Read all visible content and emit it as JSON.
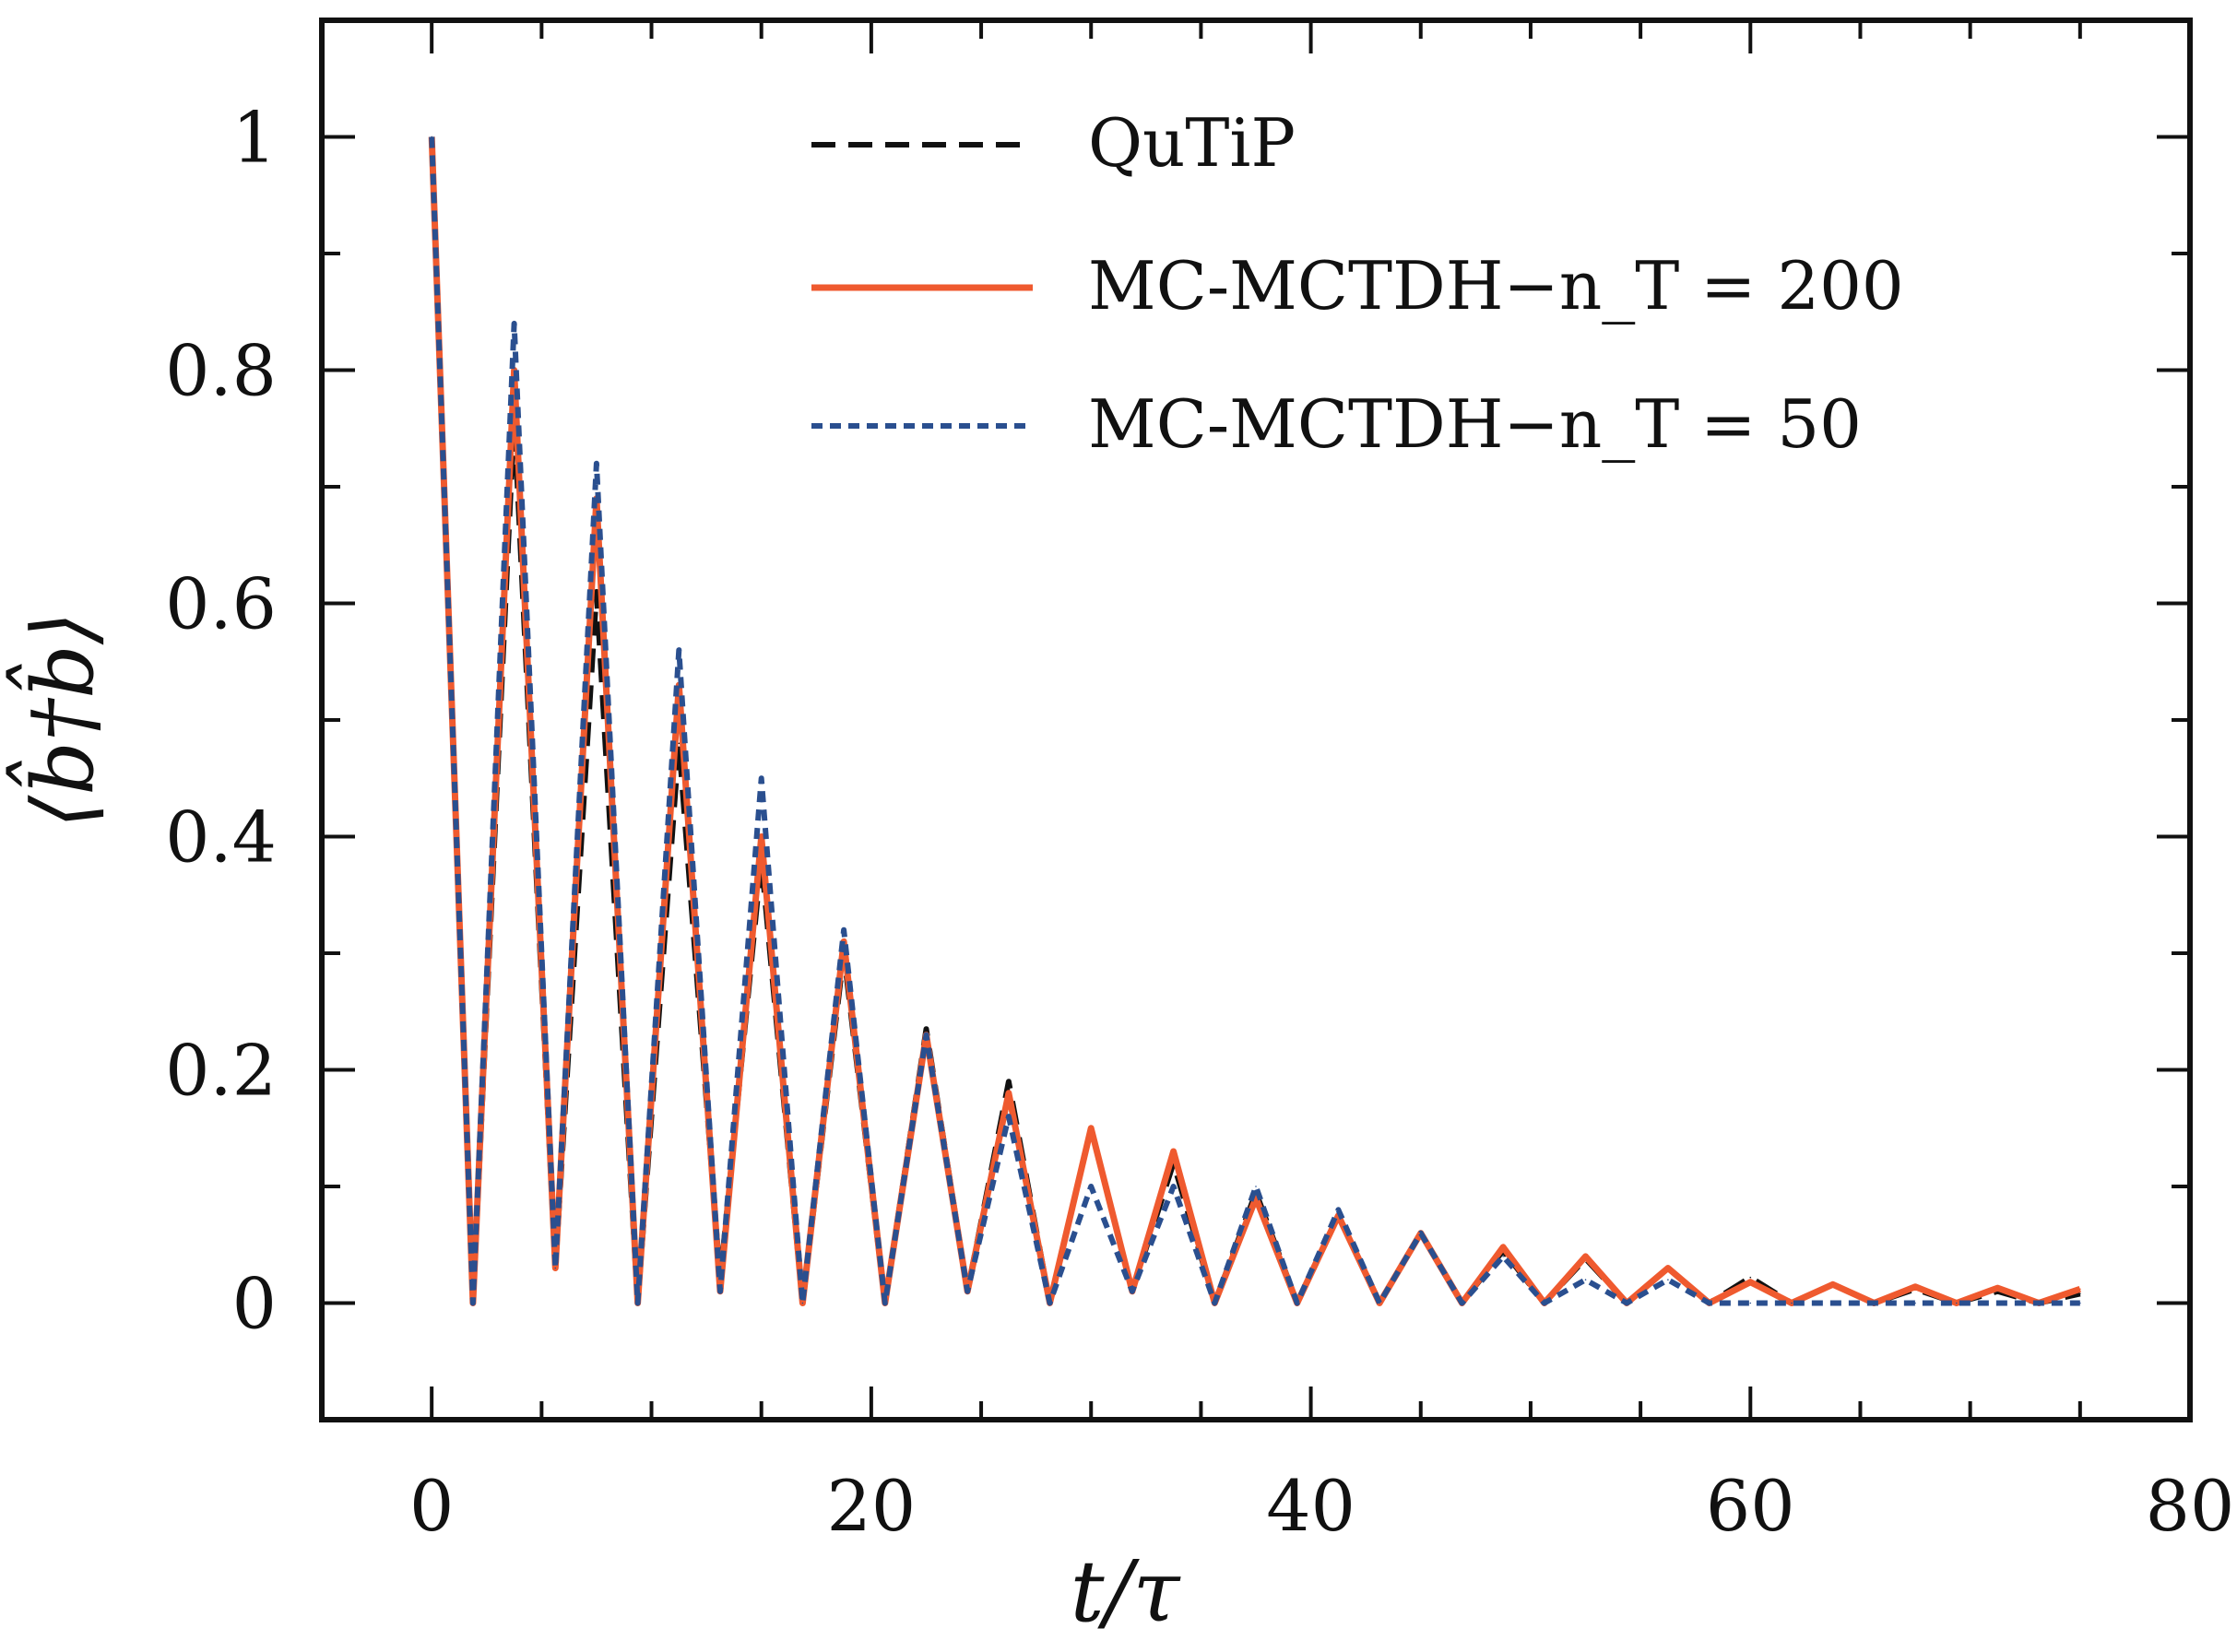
{
  "chart_data": {
    "type": "line",
    "title": "",
    "xlabel": "t/τ",
    "ylabel": "⟨b̂†b̂⟩",
    "xlim": [
      -5,
      80
    ],
    "ylim": [
      -0.1,
      1.1
    ],
    "xticks": [
      0,
      20,
      40,
      60,
      80
    ],
    "xtick_labels": [
      "0",
      "20",
      "40",
      "60",
      "80"
    ],
    "yticks": [
      0,
      0.2,
      0.4,
      0.6,
      0.8,
      1
    ],
    "ytick_labels": [
      "0",
      "0.2",
      "0.4",
      "0.6",
      "0.8",
      "1"
    ],
    "x_minor_step": 5,
    "y_minor_step": 0.1,
    "grid": false,
    "legend_position": "top-right",
    "x": [
      0,
      1.875,
      3.75,
      5.625,
      7.5,
      9.375,
      11.25,
      13.125,
      15,
      16.875,
      18.75,
      20.625,
      22.5,
      24.375,
      26.25,
      28.125,
      30,
      31.875,
      33.75,
      35.625,
      37.5,
      39.375,
      41.25,
      43.125,
      45,
      46.875,
      48.75,
      50.625,
      52.5,
      54.375,
      56.25,
      58.125,
      60,
      61.875,
      63.75,
      65.625,
      67.5,
      69.375,
      71.25,
      73.125,
      75
    ],
    "series": [
      {
        "name": "QuTiP",
        "color": "#111111",
        "style": "dashed",
        "values": [
          1.0,
          0.0,
          0.76,
          0.03,
          0.61,
          0.0,
          0.48,
          0.02,
          0.38,
          0.0,
          0.3,
          0.0,
          0.235,
          0.01,
          0.19,
          0.0,
          0.15,
          0.01,
          0.12,
          0.0,
          0.095,
          0.0,
          0.075,
          0.0,
          0.06,
          0.0,
          0.045,
          0.0,
          0.038,
          0.0,
          0.03,
          0.0,
          0.022,
          0.0,
          0.016,
          0.0,
          0.012,
          0.0,
          0.01,
          0.0,
          0.008
        ]
      },
      {
        "name": "MC-MCTDH−n_T = 200",
        "color": "#ef5a2f",
        "style": "solid",
        "values": [
          1.0,
          0.0,
          0.8,
          0.03,
          0.69,
          0.0,
          0.53,
          0.01,
          0.4,
          0.0,
          0.31,
          0.0,
          0.23,
          0.01,
          0.18,
          0.0,
          0.15,
          0.01,
          0.13,
          0.0,
          0.09,
          0.0,
          0.075,
          0.0,
          0.06,
          0.0,
          0.048,
          0.0,
          0.04,
          0.0,
          0.03,
          0.0,
          0.018,
          0.0,
          0.016,
          0.0,
          0.014,
          0.0,
          0.013,
          0.0,
          0.012
        ]
      },
      {
        "name": "MC-MCTDH−n_T = 50",
        "color": "#2a4f8f",
        "style": "dotted",
        "values": [
          1.0,
          0.0,
          0.84,
          0.03,
          0.72,
          0.0,
          0.56,
          0.01,
          0.45,
          0.0,
          0.32,
          0.0,
          0.23,
          0.01,
          0.16,
          0.0,
          0.1,
          0.01,
          0.1,
          0.0,
          0.1,
          0.0,
          0.08,
          0.0,
          0.06,
          0.0,
          0.04,
          0.0,
          0.02,
          0.0,
          0.02,
          0.0,
          0.0,
          0.0,
          0.0,
          0.0,
          0.0,
          0.0,
          0.0,
          0.0,
          0.0
        ]
      }
    ]
  }
}
